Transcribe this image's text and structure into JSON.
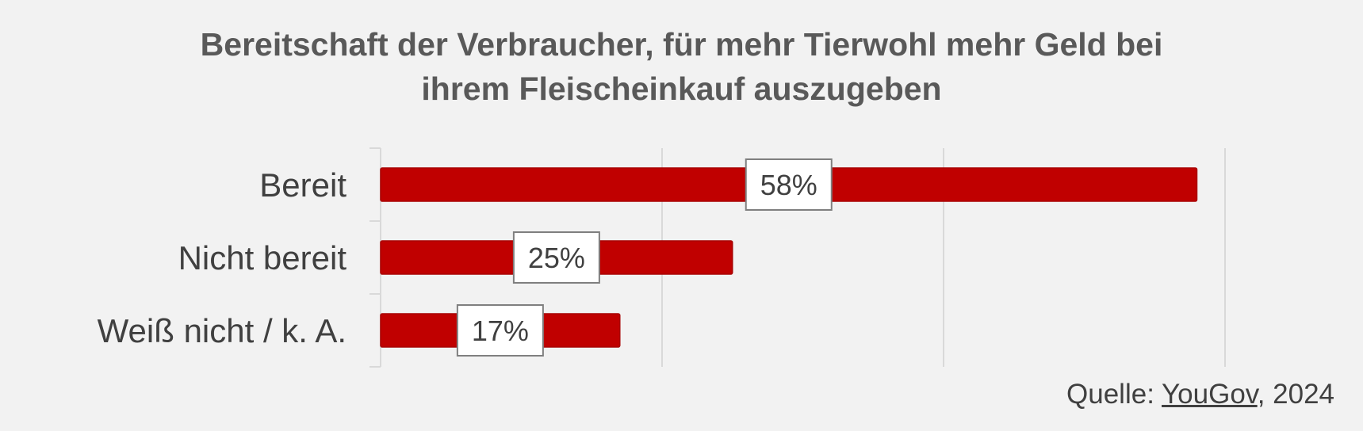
{
  "title_line1": "Bereitschaft der Verbraucher, für mehr Tierwohl mehr Geld bei",
  "title_line2": "ihrem Fleischeinkauf auszugeben",
  "source": {
    "prefix": "Quelle: ",
    "link": "YouGov",
    "suffix": ", 2024"
  },
  "colors": {
    "bar": "#c00000",
    "background": "#f2f2f2",
    "gridline": "#d9d9d9"
  },
  "chart_data": {
    "type": "bar",
    "orientation": "horizontal",
    "title": "Bereitschaft der Verbraucher, für mehr Tierwohl mehr Geld bei ihrem Fleischeinkauf auszugeben",
    "categories": [
      "Bereit",
      "Nicht bereit",
      "Weiß nicht / k. A."
    ],
    "values": [
      58,
      25,
      17
    ],
    "data_labels": [
      "58%",
      "25%",
      "17%"
    ],
    "xlim": [
      0,
      60
    ],
    "gridlines": true,
    "axis_tick_labels_visible": false,
    "unit": "%"
  }
}
